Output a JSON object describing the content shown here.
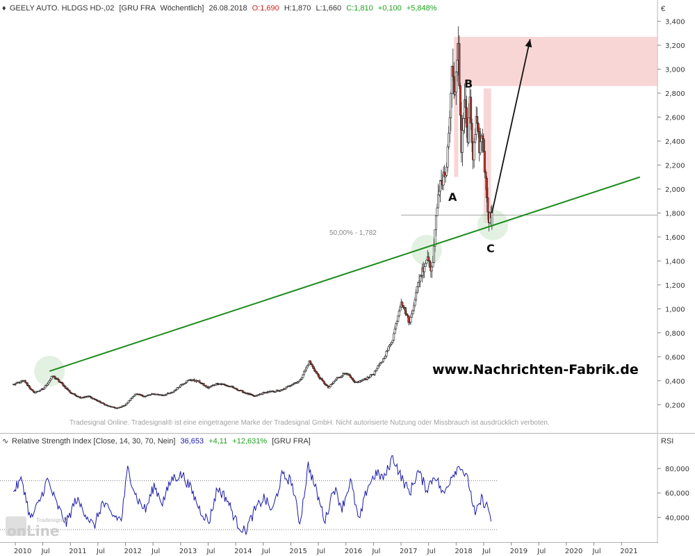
{
  "header": {
    "instrument": "GEELY AUTO. HLDGS HD-,02",
    "exchange": "[GRU FRA",
    "interval": "Wöchentlich]",
    "date": "26.08.2018",
    "open": "O:1,690",
    "high": "H:1,870",
    "low": "L:1,660",
    "close": "C:1,810",
    "change": "+0,100",
    "change_pct": "+5,848%"
  },
  "currency": "€",
  "rsi_header": {
    "title": "Relative Strength Index [Close, 14, 30, 70, Nein]",
    "value": "36,653",
    "change": "+4,11",
    "change_pct": "+12,631%",
    "exchange": "[GRU FRA]"
  },
  "rsi_axis_title": "RSI",
  "annotations": {
    "point_a": "A",
    "point_b": "B",
    "point_c": "C",
    "fib_label": "50,00% - 1,782",
    "website": "www.Nachrichten-Fabrik.de",
    "disclaimer": "Tradesignal Online. Tradesignal® ist eine eingetragene Marke der Tradesignal GmbH. Nicht autorisierte Nutzung oder Missbrauch ist ausdrücklich verboten."
  },
  "logo": {
    "top": "Tradesignal",
    "bottom": "onLine"
  },
  "colors": {
    "up_candle": "#f2f2f2",
    "down_candle": "#c0392b",
    "trendline": "#1a8a1a",
    "zone": "#f7c5c5",
    "rsi_line": "#1a1aa8",
    "highlight": "#cfe8cf"
  },
  "chart_data": [
    {
      "type": "candlestick",
      "title": "GEELY AUTO. HLDGS HD-,02",
      "interval": "weekly",
      "y_unit": "€",
      "ylim": [
        0.08,
        3.45
      ],
      "yticks": [
        "0,200",
        "0,400",
        "0,600",
        "0,800",
        "1,000",
        "1,200",
        "1,400",
        "1,600",
        "1,800",
        "2,000",
        "2,200",
        "2,400",
        "2,600",
        "2,800",
        "3,000",
        "3,200",
        "3,400"
      ],
      "x_labels": [
        "2010",
        "Jul",
        "2011",
        "Jul",
        "2012",
        "Jul",
        "2013",
        "Jul",
        "2014",
        "Jul",
        "2015",
        "Jul",
        "2016",
        "Jul",
        "2017",
        "Jul",
        "2018",
        "Jul",
        "2019",
        "Jul",
        "2020",
        "Jul",
        "2021"
      ],
      "close_path": [
        [
          "2009-12-21",
          0.37
        ],
        [
          "2010-03-01",
          0.4
        ],
        [
          "2010-05-03",
          0.3
        ],
        [
          "2010-07-05",
          0.33
        ],
        [
          "2010-09-06",
          0.44
        ],
        [
          "2010-11-01",
          0.38
        ],
        [
          "2011-01-03",
          0.3
        ],
        [
          "2011-03-07",
          0.26
        ],
        [
          "2011-05-02",
          0.27
        ],
        [
          "2011-07-04",
          0.23
        ],
        [
          "2011-09-05",
          0.19
        ],
        [
          "2011-11-07",
          0.17
        ],
        [
          "2012-01-02",
          0.2
        ],
        [
          "2012-03-05",
          0.29
        ],
        [
          "2012-05-07",
          0.27
        ],
        [
          "2012-07-02",
          0.29
        ],
        [
          "2012-09-03",
          0.28
        ],
        [
          "2012-11-05",
          0.3
        ],
        [
          "2013-01-07",
          0.37
        ],
        [
          "2013-03-04",
          0.41
        ],
        [
          "2013-05-06",
          0.39
        ],
        [
          "2013-07-01",
          0.34
        ],
        [
          "2013-09-02",
          0.38
        ],
        [
          "2013-11-04",
          0.36
        ],
        [
          "2014-01-06",
          0.33
        ],
        [
          "2014-03-03",
          0.3
        ],
        [
          "2014-05-05",
          0.27
        ],
        [
          "2014-07-07",
          0.3
        ],
        [
          "2014-09-01",
          0.31
        ],
        [
          "2014-11-03",
          0.32
        ],
        [
          "2015-01-05",
          0.37
        ],
        [
          "2015-03-02",
          0.4
        ],
        [
          "2015-05-04",
          0.56
        ],
        [
          "2015-07-06",
          0.43
        ],
        [
          "2015-09-07",
          0.34
        ],
        [
          "2015-11-02",
          0.42
        ],
        [
          "2016-01-04",
          0.47
        ],
        [
          "2016-02-29",
          0.38
        ],
        [
          "2016-05-02",
          0.41
        ],
        [
          "2016-07-04",
          0.46
        ],
        [
          "2016-09-05",
          0.58
        ],
        [
          "2016-11-07",
          0.75
        ],
        [
          "2017-01-02",
          1.07
        ],
        [
          "2017-02-27",
          0.88
        ],
        [
          "2017-05-01",
          1.25
        ],
        [
          "2017-06-26",
          1.44
        ],
        [
          "2017-07-24",
          1.32
        ],
        [
          "2017-08-14",
          1.62
        ],
        [
          "2017-09-04",
          2.0
        ],
        [
          "2017-10-02",
          2.05
        ],
        [
          "2017-10-30",
          2.2
        ],
        [
          "2017-11-20",
          2.6
        ],
        [
          "2017-12-04",
          3.0
        ],
        [
          "2017-12-25",
          2.8
        ],
        [
          "2018-01-15",
          3.15
        ],
        [
          "2018-02-05",
          2.35
        ],
        [
          "2018-02-26",
          2.75
        ],
        [
          "2018-03-19",
          2.4
        ],
        [
          "2018-04-02",
          2.7
        ],
        [
          "2018-04-23",
          2.25
        ],
        [
          "2018-05-14",
          2.55
        ],
        [
          "2018-06-04",
          2.35
        ],
        [
          "2018-06-25",
          2.45
        ],
        [
          "2018-07-16",
          2.05
        ],
        [
          "2018-08-06",
          1.75
        ],
        [
          "2018-08-26",
          1.81
        ]
      ],
      "last_candle": {
        "date": "2018-08-26",
        "open": 1.69,
        "high": 1.87,
        "low": 1.66,
        "close": 1.81
      },
      "trendline": {
        "from": [
          "2010-08-16",
          0.48
        ],
        "to": [
          "2021-05-03",
          2.1
        ]
      },
      "fib_50pct_level": 1.782,
      "zones": [
        {
          "label": "A",
          "from": "2017-12-18",
          "to": "2018-01-15",
          "low": 2.1,
          "high": 3.27
        },
        {
          "label": "B",
          "from": "2018-01-15",
          "to": "2021-09-30",
          "low": 2.86,
          "high": 3.27
        },
        {
          "from": "2018-07-02",
          "to": "2018-08-20",
          "low": 1.72,
          "high": 2.84
        }
      ],
      "arrow": {
        "from": [
          "2018-08-26",
          1.8
        ],
        "to": [
          "2019-05-06",
          3.25
        ]
      },
      "pivots": {
        "A": [
          "2018-02-01",
          2.05
        ],
        "B": [
          "2018-02-15",
          3.0
        ],
        "C": [
          "2018-08-26",
          1.61
        ]
      }
    },
    {
      "type": "line",
      "title": "Relative Strength Index [Close, 14, 30, 70, Nein]",
      "ylabel": "RSI",
      "ylim": [
        22,
        96
      ],
      "yticks": [
        "40,000",
        "60,000",
        "80,000"
      ],
      "levels": [
        30,
        70
      ],
      "last_value": 36.653,
      "series": [
        {
          "points": [
            [
              "2009-12-21",
              62
            ],
            [
              "2010-02-15",
              71
            ],
            [
              "2010-04-12",
              38
            ],
            [
              "2010-06-07",
              52
            ],
            [
              "2010-08-02",
              71
            ],
            [
              "2010-10-04",
              50
            ],
            [
              "2010-12-06",
              35
            ],
            [
              "2011-02-07",
              55
            ],
            [
              "2011-04-04",
              45
            ],
            [
              "2011-06-06",
              32
            ],
            [
              "2011-08-01",
              52
            ],
            [
              "2011-10-03",
              42
            ],
            [
              "2011-12-05",
              38
            ],
            [
              "2012-01-16",
              80
            ],
            [
              "2012-03-19",
              55
            ],
            [
              "2012-05-14",
              46
            ],
            [
              "2012-07-09",
              66
            ],
            [
              "2012-09-03",
              52
            ],
            [
              "2012-11-05",
              72
            ],
            [
              "2013-01-14",
              75
            ],
            [
              "2013-03-11",
              63
            ],
            [
              "2013-05-06",
              47
            ],
            [
              "2013-07-08",
              36
            ],
            [
              "2013-09-02",
              64
            ],
            [
              "2013-11-04",
              55
            ],
            [
              "2014-01-06",
              36
            ],
            [
              "2014-03-03",
              28
            ],
            [
              "2014-05-05",
              45
            ],
            [
              "2014-07-07",
              56
            ],
            [
              "2014-09-01",
              45
            ],
            [
              "2014-11-03",
              74
            ],
            [
              "2015-01-05",
              70
            ],
            [
              "2015-03-02",
              35
            ],
            [
              "2015-04-27",
              83
            ],
            [
              "2015-06-22",
              60
            ],
            [
              "2015-08-17",
              37
            ],
            [
              "2015-10-12",
              65
            ],
            [
              "2015-12-07",
              48
            ],
            [
              "2016-02-01",
              70
            ],
            [
              "2016-03-28",
              36
            ],
            [
              "2016-05-23",
              65
            ],
            [
              "2016-07-18",
              76
            ],
            [
              "2016-09-12",
              72
            ],
            [
              "2016-11-07",
              90
            ],
            [
              "2017-01-02",
              73
            ],
            [
              "2017-02-27",
              60
            ],
            [
              "2017-04-24",
              78
            ],
            [
              "2017-06-19",
              63
            ],
            [
              "2017-08-14",
              75
            ],
            [
              "2017-10-09",
              58
            ],
            [
              "2017-12-04",
              75
            ],
            [
              "2018-01-29",
              83
            ],
            [
              "2018-03-26",
              68
            ],
            [
              "2018-05-07",
              41
            ],
            [
              "2018-06-18",
              55
            ],
            [
              "2018-07-30",
              48
            ],
            [
              "2018-08-26",
              36.65
            ]
          ]
        }
      ]
    }
  ]
}
